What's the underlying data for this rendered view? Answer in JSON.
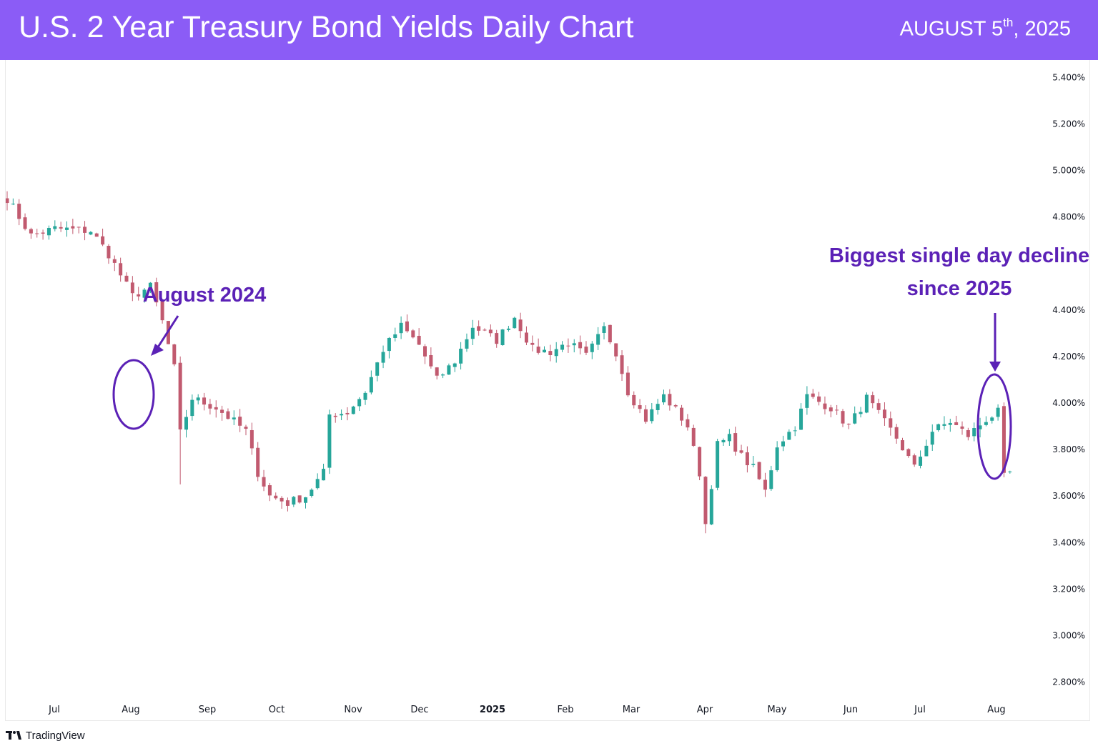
{
  "header": {
    "title": "U.S. 2 Year Treasury Bond Yields Daily Chart",
    "date_main": "AUGUST 5",
    "date_sup": "th",
    "date_tail": ", 2025",
    "background": "#8b5cf6"
  },
  "footer": {
    "brand": "TradingView",
    "logo_icon": "tradingview-logo-icon"
  },
  "chart_data": {
    "type": "candlestick",
    "title": "U.S. 2 Year Treasury Bond Yields Daily Chart",
    "ylim": [
      2.7,
      5.45
    ],
    "yticks": [
      5.4,
      5.2,
      5.0,
      4.8,
      4.6,
      4.4,
      4.2,
      4.0,
      3.8,
      3.6,
      3.4,
      3.2,
      3.0,
      2.8
    ],
    "ytick_labels": [
      "5.400%",
      "5.200%",
      "5.000%",
      "4.800%",
      "",
      "4.400%",
      "4.200%",
      "4.000%",
      "3.800%",
      "3.600%",
      "3.400%",
      "3.200%",
      "3.000%",
      "2.800%"
    ],
    "x_labels": [
      "Jul",
      "Aug",
      "Sep",
      "Oct",
      "Nov",
      "Dec",
      "2025",
      "Feb",
      "Mar",
      "Apr",
      "May",
      "Jun",
      "Jul",
      "Aug"
    ],
    "x_label_index": [
      0,
      1,
      2,
      3,
      4,
      5,
      6,
      7,
      8,
      9,
      10,
      11,
      12,
      13
    ],
    "grid": false,
    "up_color": "#26a69a",
    "down_color": "#c15a6f",
    "accent_color": "#5b21b6",
    "path": [
      [
        0,
        4.88
      ],
      [
        4,
        4.72
      ],
      [
        8,
        4.75
      ],
      [
        14,
        4.74
      ],
      [
        17,
        4.64
      ],
      [
        21,
        4.46
      ],
      [
        24,
        4.5
      ],
      [
        26,
        4.35
      ],
      [
        28,
        4.15
      ],
      [
        29,
        3.87
      ],
      [
        31,
        4.02
      ],
      [
        35,
        3.98
      ],
      [
        40,
        3.88
      ],
      [
        42,
        3.7
      ],
      [
        44,
        3.6
      ],
      [
        47,
        3.57
      ],
      [
        50,
        3.6
      ],
      [
        53,
        3.7
      ],
      [
        54,
        3.95
      ],
      [
        57,
        3.96
      ],
      [
        60,
        4.05
      ],
      [
        63,
        4.23
      ],
      [
        66,
        4.33
      ],
      [
        69,
        4.25
      ],
      [
        72,
        4.1
      ],
      [
        75,
        4.18
      ],
      [
        78,
        4.33
      ],
      [
        82,
        4.27
      ],
      [
        85,
        4.37
      ],
      [
        88,
        4.23
      ],
      [
        91,
        4.22
      ],
      [
        94,
        4.26
      ],
      [
        97,
        4.2
      ],
      [
        100,
        4.32
      ],
      [
        102,
        4.22
      ],
      [
        104,
        4.05
      ],
      [
        107,
        3.93
      ],
      [
        110,
        4.03
      ],
      [
        112,
        3.97
      ],
      [
        114,
        3.9
      ],
      [
        116,
        3.7
      ],
      [
        117,
        3.48
      ],
      [
        119,
        3.82
      ],
      [
        121,
        3.85
      ],
      [
        123,
        3.77
      ],
      [
        125,
        3.72
      ],
      [
        127,
        3.62
      ],
      [
        129,
        3.82
      ],
      [
        132,
        3.9
      ],
      [
        134,
        4.03
      ],
      [
        138,
        3.98
      ],
      [
        141,
        3.9
      ],
      [
        144,
        4.02
      ],
      [
        146,
        3.95
      ],
      [
        149,
        3.85
      ],
      [
        152,
        3.72
      ],
      [
        155,
        3.88
      ],
      [
        158,
        3.92
      ],
      [
        161,
        3.86
      ],
      [
        164,
        3.93
      ],
      [
        166,
        3.96
      ],
      [
        167,
        3.68
      ],
      [
        168,
        3.7
      ]
    ],
    "annotations": [
      {
        "text": "August 2024",
        "target_index": 29,
        "color": "#5b21b6"
      },
      {
        "text_lines": [
          "Biggest single day decline",
          "since 2025"
        ],
        "target_index": 167,
        "color": "#5b21b6"
      }
    ]
  }
}
